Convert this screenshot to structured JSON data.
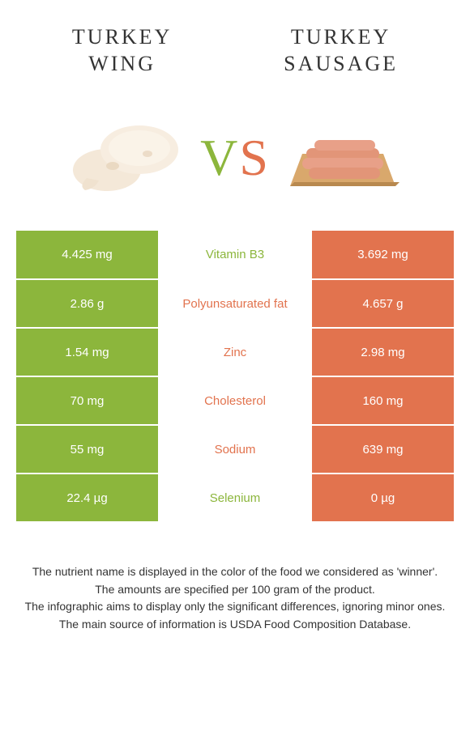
{
  "header": {
    "left_title": "Turkey\nwing",
    "right_title": "Turkey\nsausage"
  },
  "vs": {
    "v": "V",
    "s": "S"
  },
  "colors": {
    "left": "#8cb63c",
    "right": "#e2734e",
    "mid_left_text": "#8cb63c",
    "mid_right_text": "#e2734e"
  },
  "rows": [
    {
      "left": "4.425 mg",
      "label": "Vitamin B3",
      "right": "3.692 mg",
      "winner": "left"
    },
    {
      "left": "2.86 g",
      "label": "Polyunsaturated fat",
      "right": "4.657 g",
      "winner": "right"
    },
    {
      "left": "1.54 mg",
      "label": "Zinc",
      "right": "2.98 mg",
      "winner": "right"
    },
    {
      "left": "70 mg",
      "label": "Cholesterol",
      "right": "160 mg",
      "winner": "right"
    },
    {
      "left": "55 mg",
      "label": "Sodium",
      "right": "639 mg",
      "winner": "right"
    },
    {
      "left": "22.4 µg",
      "label": "Selenium",
      "right": "0 µg",
      "winner": "left"
    }
  ],
  "footer": {
    "line1": "The nutrient name is displayed in the color of the food we considered as 'winner'.",
    "line2": "The amounts are specified per 100 gram of the product.",
    "line3": "The infographic aims to display only the significant differences, ignoring minor ones.",
    "line4": "The main source of information is USDA Food Composition Database."
  }
}
